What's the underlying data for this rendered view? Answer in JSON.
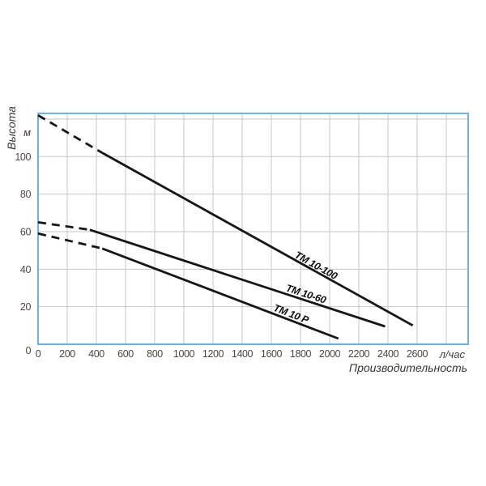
{
  "chart_data": {
    "type": "line",
    "title": "",
    "xlabel": "Производительность",
    "x_unit": "л/час",
    "ylabel": "Высота",
    "y_unit": "м",
    "xlim": [
      0,
      2950
    ],
    "ylim": [
      0,
      123
    ],
    "x_ticks": [
      0,
      200,
      400,
      600,
      800,
      1000,
      1200,
      1400,
      1600,
      1800,
      2000,
      2200,
      2400,
      2600
    ],
    "y_ticks": [
      0,
      20,
      40,
      60,
      80,
      100
    ],
    "x_grid_step": 200,
    "y_grid_step": 20,
    "grid": true,
    "legend_position": "on-curve",
    "series": [
      {
        "name": "TM 10-100",
        "dashed_points": [
          [
            0,
            122
          ],
          [
            440,
            102
          ]
        ],
        "solid_points": [
          [
            440,
            102
          ],
          [
            2570,
            10
          ]
        ],
        "label_anchor": [
          1755,
          46.5
        ],
        "label_angle_deg": 29
      },
      {
        "name": "TM 10-60",
        "dashed_points": [
          [
            0,
            65
          ],
          [
            355,
            61
          ]
        ],
        "solid_points": [
          [
            355,
            61
          ],
          [
            2380,
            9.5
          ]
        ],
        "label_anchor": [
          1695,
          28.5
        ],
        "label_angle_deg": 18
      },
      {
        "name": "TM 10 P",
        "dashed_points": [
          [
            0,
            59
          ],
          [
            440,
            51
          ]
        ],
        "solid_points": [
          [
            440,
            51
          ],
          [
            2060,
            3
          ]
        ],
        "label_anchor": [
          1610,
          18
        ],
        "label_angle_deg": 21
      }
    ],
    "colors": {
      "frame": "#6fb2da",
      "grid": "#c6c6c6",
      "curve": "#161616",
      "text": "#4c463f"
    }
  }
}
